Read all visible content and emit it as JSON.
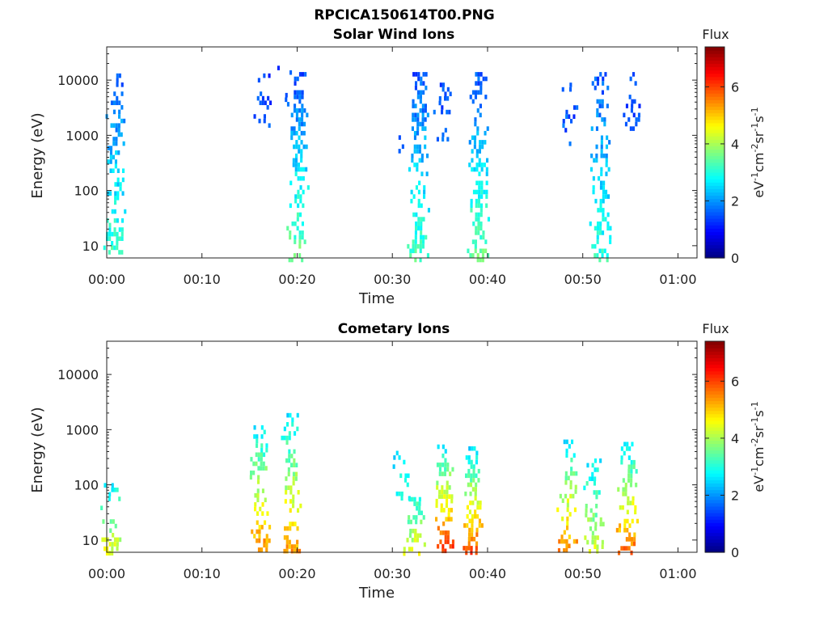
{
  "figure_title": "RPCICA150614T00.PNG",
  "chart_data": [
    {
      "type": "heatmap",
      "title": "Solar Wind Ions",
      "xlabel": "Time",
      "ylabel": "Energy (eV)",
      "yscale": "log",
      "ylim": [
        6,
        40000
      ],
      "xlim": [
        "00:00",
        "01:02"
      ],
      "x_ticks": [
        "00:00",
        "00:10",
        "00:20",
        "00:30",
        "00:40",
        "00:50",
        "01:00"
      ],
      "y_ticks": [
        "10",
        "100",
        "1000",
        "10000"
      ],
      "colorbar": {
        "label": "Flux",
        "unit_parts": {
          "base": "eV",
          "e1": "-1",
          "cm": "cm",
          "e2": "-2",
          "sr": "sr",
          "e3": "-1",
          "s": "s",
          "e4": "-1"
        },
        "range": [
          0,
          7.4
        ],
        "ticks": [
          "0",
          "2",
          "4",
          "6"
        ],
        "colormap": "jet"
      },
      "grid": false,
      "clusters": [
        {
          "time_min": 0.8,
          "emin": 6,
          "emax": 16000,
          "flux_low": 3.3,
          "flux_high": 1.5,
          "density": 0.55
        },
        {
          "time_min": 16.5,
          "emin": 1000,
          "emax": 16000,
          "flux_low": 1.5,
          "flux_high": 1.3,
          "density": 0.2
        },
        {
          "time_min": 18.8,
          "emin": 4000,
          "emax": 22000,
          "flux_low": 1.5,
          "flux_high": 1.3,
          "density": 0.15
        },
        {
          "time_min": 20.0,
          "emin": 6,
          "emax": 14000,
          "flux_low": 3.6,
          "flux_high": 1.5,
          "density": 0.55
        },
        {
          "time_min": 30.7,
          "emin": 500,
          "emax": 1000,
          "flux_low": 1.6,
          "flux_high": 1.5,
          "density": 0.2
        },
        {
          "time_min": 32.7,
          "emin": 6,
          "emax": 14000,
          "flux_low": 3.3,
          "flux_high": 1.5,
          "density": 0.55
        },
        {
          "time_min": 35.3,
          "emin": 900,
          "emax": 9000,
          "flux_low": 1.6,
          "flux_high": 1.4,
          "density": 0.25
        },
        {
          "time_min": 39.0,
          "emin": 6,
          "emax": 14000,
          "flux_low": 3.6,
          "flux_high": 1.5,
          "density": 0.6
        },
        {
          "time_min": 48.4,
          "emin": 700,
          "emax": 9000,
          "flux_low": 1.6,
          "flux_high": 1.4,
          "density": 0.2
        },
        {
          "time_min": 51.8,
          "emin": 6,
          "emax": 14000,
          "flux_low": 3.1,
          "flux_high": 1.5,
          "density": 0.55
        },
        {
          "time_min": 55.0,
          "emin": 800,
          "emax": 14000,
          "flux_low": 1.6,
          "flux_high": 1.4,
          "density": 0.25
        }
      ]
    },
    {
      "type": "heatmap",
      "title": "Cometary Ions",
      "xlabel": "Time",
      "ylabel": "Energy (eV)",
      "yscale": "log",
      "ylim": [
        6,
        40000
      ],
      "xlim": [
        "00:00",
        "01:02"
      ],
      "x_ticks": [
        "00:00",
        "00:10",
        "00:20",
        "00:30",
        "00:40",
        "00:50",
        "01:00"
      ],
      "y_ticks": [
        "10",
        "100",
        "1000",
        "10000"
      ],
      "colorbar": {
        "label": "Flux",
        "unit_parts": {
          "base": "eV",
          "e1": "-1",
          "cm": "cm",
          "e2": "-2",
          "sr": "sr",
          "e3": "-1",
          "s": "s",
          "e4": "-1"
        },
        "range": [
          0,
          7.4
        ],
        "ticks": [
          "0",
          "2",
          "4",
          "6"
        ],
        "colormap": "jet"
      },
      "grid": false,
      "clusters": [
        {
          "time_min": 0.3,
          "emin": 6,
          "emax": 130,
          "flux_low": 4.5,
          "flux_high": 2.6,
          "density": 0.35
        },
        {
          "time_min": 16.0,
          "emin": 6,
          "emax": 1200,
          "flux_low": 5.6,
          "flux_high": 2.6,
          "density": 0.5
        },
        {
          "time_min": 19.2,
          "emin": 6,
          "emax": 2000,
          "flux_low": 5.4,
          "flux_high": 2.6,
          "density": 0.45
        },
        {
          "time_min": 31.0,
          "emin": 60,
          "emax": 500,
          "flux_low": 2.8,
          "flux_high": 2.6,
          "density": 0.35
        },
        {
          "time_min": 32.3,
          "emin": 6,
          "emax": 60,
          "flux_low": 4.6,
          "flux_high": 3.0,
          "density": 0.5
        },
        {
          "time_min": 35.3,
          "emin": 6,
          "emax": 650,
          "flux_low": 6.2,
          "flux_high": 2.6,
          "density": 0.6
        },
        {
          "time_min": 38.3,
          "emin": 6,
          "emax": 500,
          "flux_low": 6.0,
          "flux_high": 2.6,
          "density": 0.6
        },
        {
          "time_min": 48.3,
          "emin": 6,
          "emax": 800,
          "flux_low": 5.6,
          "flux_high": 2.6,
          "density": 0.5
        },
        {
          "time_min": 51.0,
          "emin": 6,
          "emax": 300,
          "flux_low": 4.4,
          "flux_high": 2.6,
          "density": 0.45
        },
        {
          "time_min": 54.6,
          "emin": 6,
          "emax": 600,
          "flux_low": 5.8,
          "flux_high": 2.6,
          "density": 0.5
        }
      ]
    }
  ]
}
